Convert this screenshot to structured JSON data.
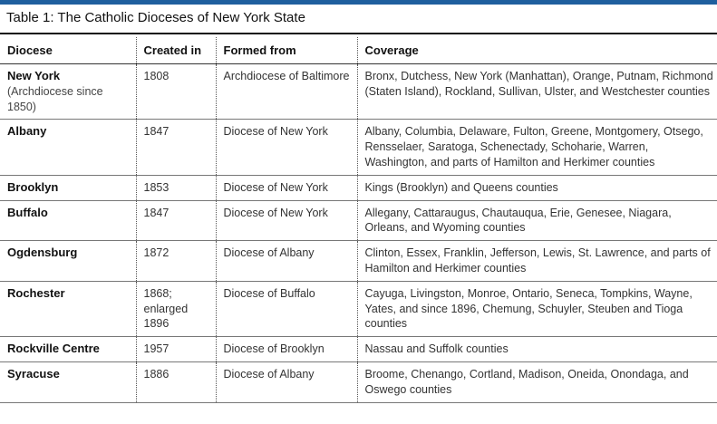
{
  "caption": "Table 1: The Catholic Dioceses of New York State",
  "colors": {
    "accent_bar": "#1f5f9e"
  },
  "headers": [
    "Diocese",
    "Created in",
    "Formed from",
    "Coverage"
  ],
  "rows": [
    {
      "name": "New York",
      "note": "(Archdiocese since 1850)",
      "created": "1808",
      "formed": "Archdiocese of Baltimore",
      "coverage": "Bronx, Dutchess, New York (Manhattan), Orange, Putnam, Richmond (Staten Island), Rockland, Sullivan, Ulster, and Westchester counties"
    },
    {
      "name": "Albany",
      "note": "",
      "created": "1847",
      "formed": "Diocese of New York",
      "coverage": "Albany, Columbia, Delaware, Fulton, Greene, Montgomery, Otsego, Rensselaer, Saratoga, Schenectady, Schoharie, Warren, Washington, and parts of Hamilton and Herkimer counties"
    },
    {
      "name": "Brooklyn",
      "note": "",
      "created": "1853",
      "formed": "Diocese of New York",
      "coverage": "Kings (Brooklyn) and Queens counties"
    },
    {
      "name": "Buffalo",
      "note": "",
      "created": "1847",
      "formed": "Diocese of New York",
      "coverage": "Allegany, Cattaraugus, Chautauqua, Erie, Genesee, Niagara, Orleans, and Wyoming counties"
    },
    {
      "name": "Ogdensburg",
      "note": "",
      "created": "1872",
      "formed": "Diocese of Albany",
      "coverage": "Clinton, Essex, Franklin, Jefferson, Lewis, St. Lawrence, and parts of Hamilton and Herkimer counties"
    },
    {
      "name": "Rochester",
      "note": "",
      "created": "1868; enlarged 1896",
      "formed": "Diocese of Buffalo",
      "coverage": "Cayuga, Livingston, Monroe, Ontario, Seneca, Tompkins, Wayne, Yates, and since 1896, Chemung, Schuyler, Steuben and Tioga counties"
    },
    {
      "name": "Rockville Centre",
      "note": "",
      "created": "1957",
      "formed": "Diocese of Brooklyn",
      "coverage": "Nassau and Suffolk counties"
    },
    {
      "name": "Syracuse",
      "note": "",
      "created": "1886",
      "formed": "Diocese of Albany",
      "coverage": "Broome, Chenango, Cortland, Madison, Oneida, Onondaga, and Oswego counties"
    }
  ]
}
